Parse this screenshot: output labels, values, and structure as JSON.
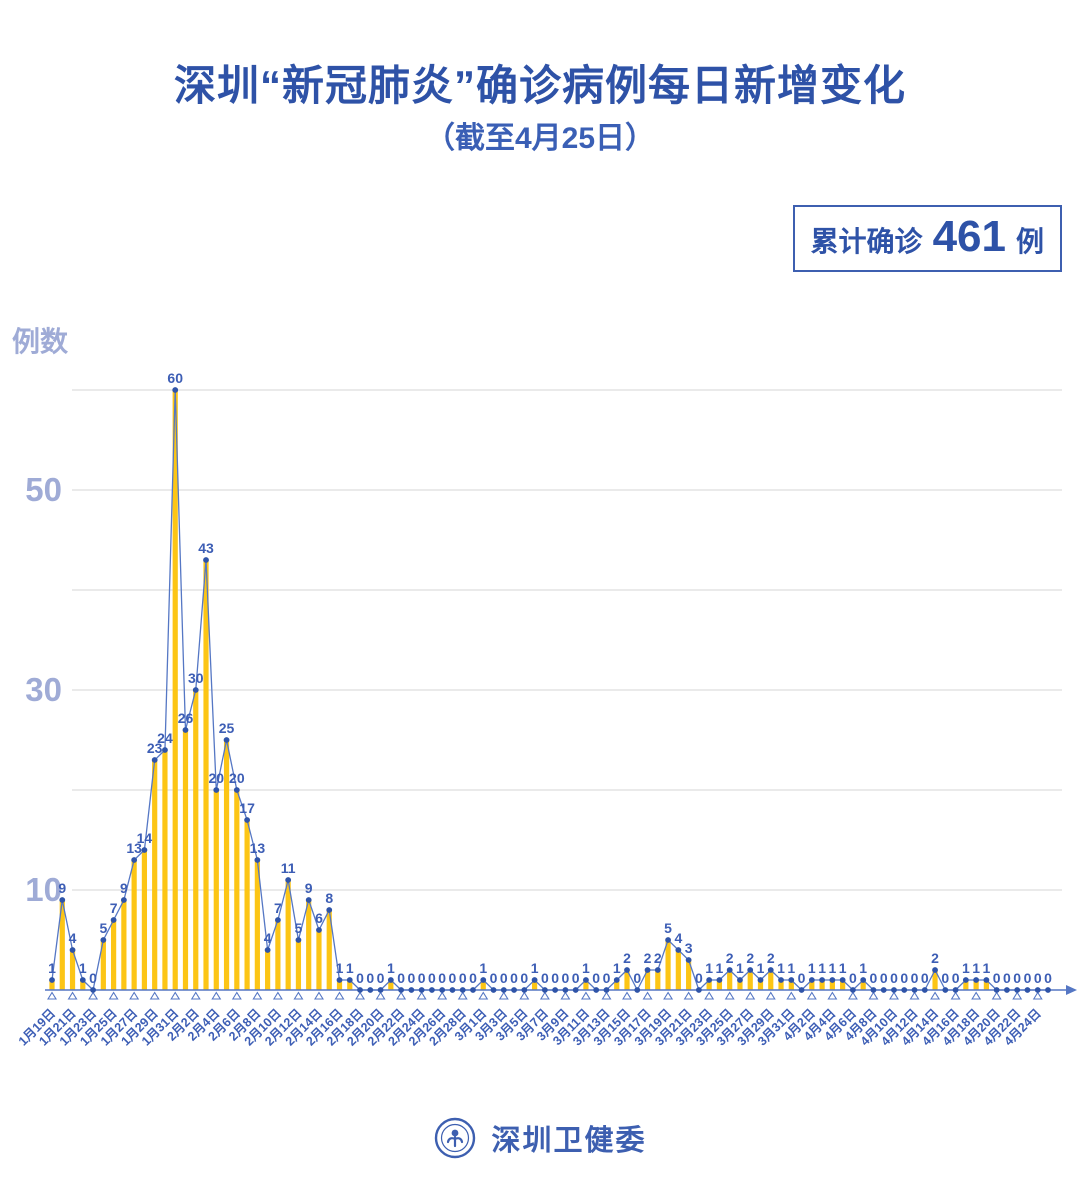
{
  "title": "深圳“新冠肺炎”确诊病例每日新增变化",
  "subtitle": "（截至4月25日）",
  "badge": {
    "prefix": "累计确诊",
    "number": "461",
    "suffix": "例"
  },
  "y_unit_label": "例数",
  "footer": {
    "org_name": "深圳卫健委"
  },
  "colors": {
    "title_blue": "#2e52a7",
    "label_blue": "#3d5eb5",
    "light_periwinkle": "#9fabd6",
    "bar_yellow": "#fcc515",
    "line_blue": "#5577c4",
    "marker_blue": "#2f54a8",
    "gridline_gray": "#e4e4e4"
  },
  "chart_data": {
    "type": "bar",
    "line_overlay": true,
    "title": "深圳“新冠肺炎”确诊病例每日新增变化（截至4月25日）",
    "xlabel": "",
    "ylabel": "例数",
    "ylim": [
      0,
      62
    ],
    "grid": true,
    "gridline_values": [
      10,
      20,
      30,
      40,
      50,
      60
    ],
    "y_axis_tick_labels": [
      10,
      30,
      50
    ],
    "x_tick_step": 2,
    "cumulative_total": 461,
    "categories": [
      "1月19日",
      "1月20日",
      "1月21日",
      "1月22日",
      "1月23日",
      "1月24日",
      "1月25日",
      "1月26日",
      "1月27日",
      "1月28日",
      "1月29日",
      "1月30日",
      "1月31日",
      "2月1日",
      "2月2日",
      "2月3日",
      "2月4日",
      "2月5日",
      "2月6日",
      "2月7日",
      "2月8日",
      "2月9日",
      "2月10日",
      "2月11日",
      "2月12日",
      "2月13日",
      "2月14日",
      "2月15日",
      "2月16日",
      "2月17日",
      "2月18日",
      "2月19日",
      "2月20日",
      "2月21日",
      "2月22日",
      "2月23日",
      "2月24日",
      "2月25日",
      "2月26日",
      "2月27日",
      "2月28日",
      "2月29日",
      "3月1日",
      "3月2日",
      "3月3日",
      "3月4日",
      "3月5日",
      "3月6日",
      "3月7日",
      "3月8日",
      "3月9日",
      "3月10日",
      "3月11日",
      "3月12日",
      "3月13日",
      "3月14日",
      "3月15日",
      "3月16日",
      "3月17日",
      "3月18日",
      "3月19日",
      "3月20日",
      "3月21日",
      "3月22日",
      "3月23日",
      "3月24日",
      "3月25日",
      "3月26日",
      "3月27日",
      "3月28日",
      "3月29日",
      "3月30日",
      "3月31日",
      "4月1日",
      "4月2日",
      "4月3日",
      "4月4日",
      "4月5日",
      "4月6日",
      "4月7日",
      "4月8日",
      "4月9日",
      "4月10日",
      "4月11日",
      "4月12日",
      "4月13日",
      "4月14日",
      "4月15日",
      "4月16日",
      "4月17日",
      "4月18日",
      "4月19日",
      "4月20日",
      "4月21日",
      "4月22日",
      "4月23日",
      "4月24日",
      "4月25日"
    ],
    "values": [
      1,
      9,
      4,
      1,
      0,
      5,
      7,
      9,
      13,
      14,
      23,
      24,
      60,
      26,
      30,
      43,
      20,
      25,
      20,
      17,
      13,
      4,
      7,
      11,
      5,
      9,
      6,
      8,
      1,
      1,
      0,
      0,
      0,
      1,
      0,
      0,
      0,
      0,
      0,
      0,
      0,
      0,
      1,
      0,
      0,
      0,
      0,
      1,
      0,
      0,
      0,
      0,
      1,
      0,
      0,
      1,
      2,
      0,
      2,
      2,
      5,
      4,
      3,
      0,
      1,
      1,
      2,
      1,
      2,
      1,
      2,
      1,
      1,
      0,
      1,
      1,
      1,
      1,
      0,
      1,
      0,
      0,
      0,
      0,
      0,
      0,
      2,
      0,
      0,
      1,
      1,
      1,
      0,
      0,
      0,
      0,
      0,
      0
    ]
  }
}
